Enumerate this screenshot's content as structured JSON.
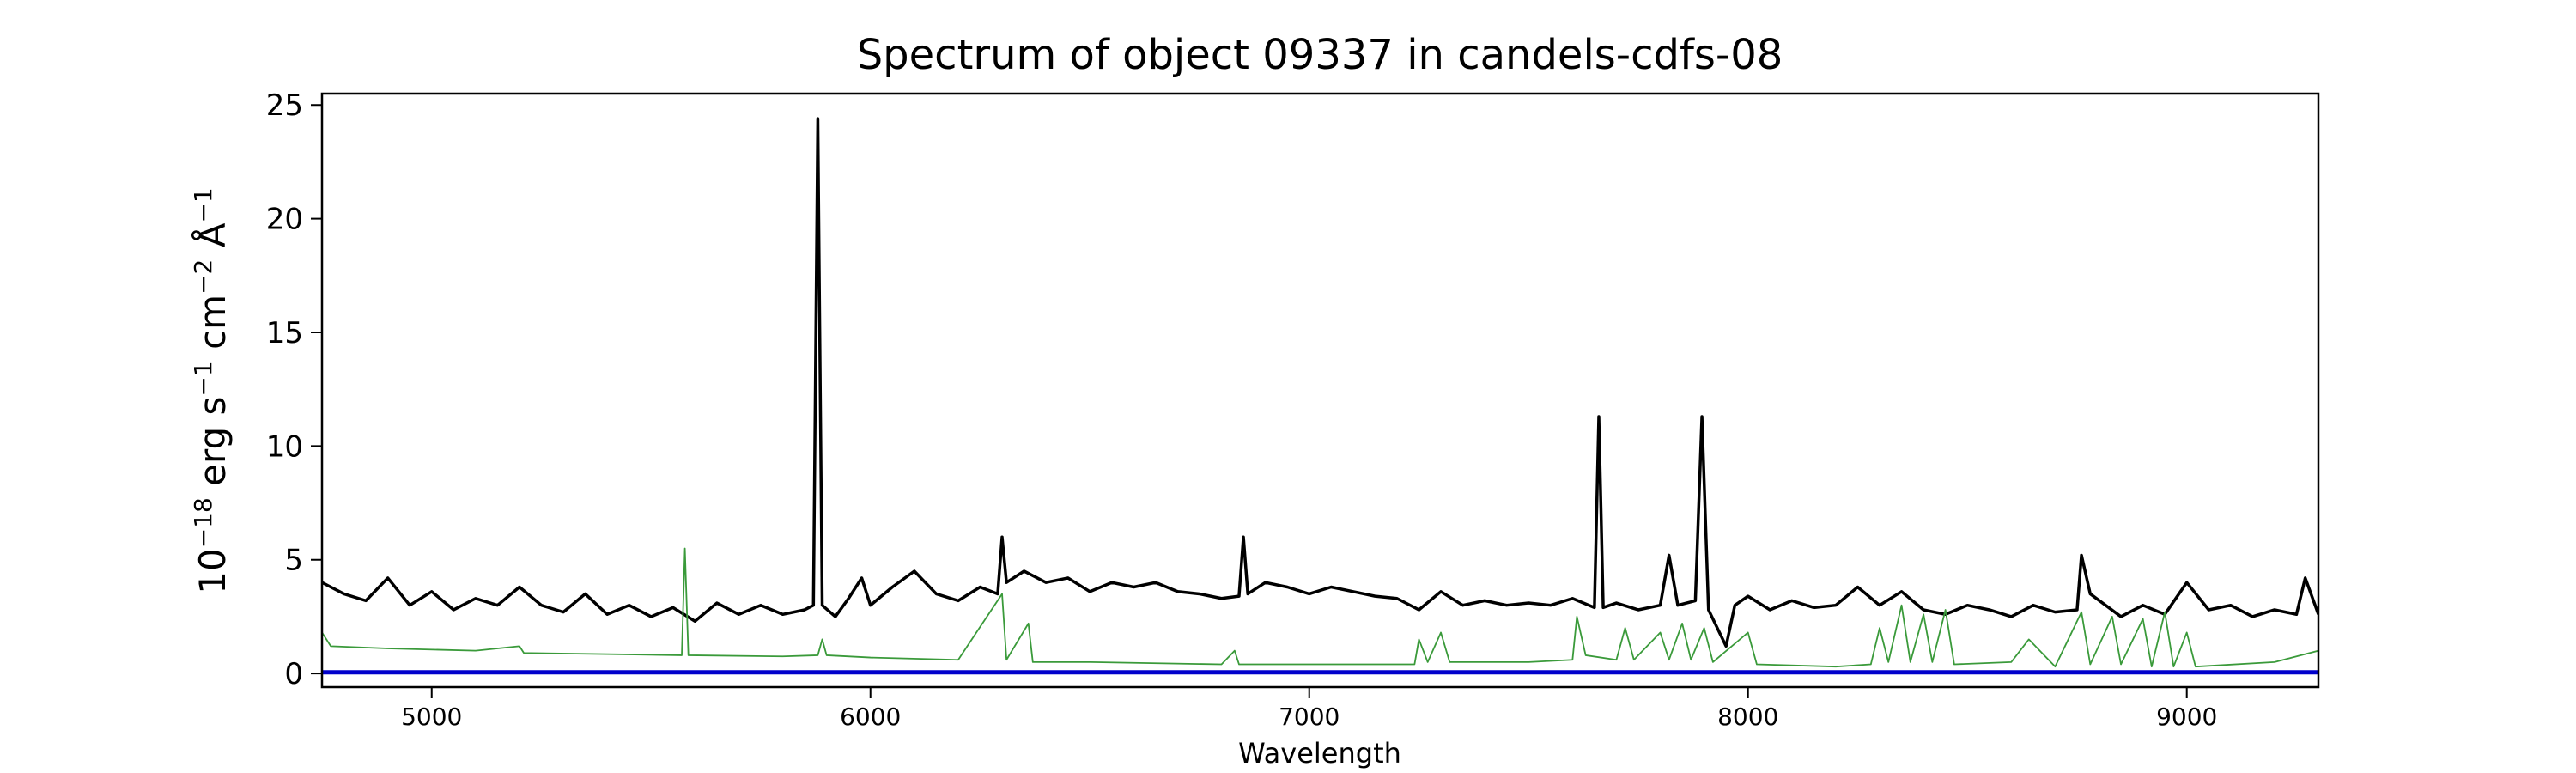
{
  "chart_data": {
    "type": "line",
    "title": "Spectrum of object 09337 in candels-cdfs-08",
    "xlabel": "Wavelength",
    "ylabel_parts": [
      {
        "text": "10",
        "sup": "−18"
      },
      {
        "text": " erg s",
        "sup": "−1"
      },
      {
        "text": " cm",
        "sup": "−2"
      },
      {
        "text": " Å",
        "sup": "−1"
      }
    ],
    "xlim": [
      4750,
      9300
    ],
    "ylim": [
      -0.6,
      25.5
    ],
    "xticks": [
      5000,
      6000,
      7000,
      8000,
      9000
    ],
    "yticks": [
      0,
      5,
      10,
      15,
      20,
      25
    ],
    "series": [
      {
        "color": "#000000",
        "width": 3.5,
        "x": [
          4750,
          4800,
          4850,
          4900,
          4950,
          5000,
          5050,
          5100,
          5150,
          5200,
          5250,
          5300,
          5350,
          5400,
          5450,
          5500,
          5550,
          5600,
          5650,
          5700,
          5750,
          5800,
          5850,
          5870,
          5880,
          5890,
          5920,
          5950,
          5980,
          6000,
          6050,
          6100,
          6150,
          6200,
          6250,
          6290,
          6300,
          6310,
          6350,
          6400,
          6450,
          6500,
          6550,
          6600,
          6650,
          6700,
          6750,
          6800,
          6840,
          6850,
          6860,
          6900,
          6950,
          7000,
          7050,
          7100,
          7150,
          7200,
          7250,
          7300,
          7350,
          7400,
          7450,
          7500,
          7550,
          7600,
          7650,
          7660,
          7670,
          7700,
          7750,
          7800,
          7820,
          7840,
          7880,
          7895,
          7910,
          7950,
          7970,
          8000,
          8050,
          8100,
          8150,
          8200,
          8250,
          8300,
          8350,
          8400,
          8450,
          8500,
          8550,
          8600,
          8650,
          8700,
          8750,
          8760,
          8780,
          8850,
          8900,
          8950,
          9000,
          9050,
          9100,
          9150,
          9200,
          9250,
          9270,
          9300
        ],
        "values": [
          4.0,
          3.5,
          3.2,
          4.2,
          3.0,
          3.6,
          2.8,
          3.3,
          3.0,
          3.8,
          3.0,
          2.7,
          3.5,
          2.6,
          3.0,
          2.5,
          2.9,
          2.3,
          3.1,
          2.6,
          3.0,
          2.6,
          2.8,
          3.0,
          24.4,
          3.0,
          2.5,
          3.3,
          4.2,
          3.0,
          3.8,
          4.5,
          3.5,
          3.2,
          3.8,
          3.5,
          6.0,
          4.0,
          4.5,
          4.0,
          4.2,
          3.6,
          4.0,
          3.8,
          4.0,
          3.6,
          3.5,
          3.3,
          3.4,
          6.0,
          3.5,
          4.0,
          3.8,
          3.5,
          3.8,
          3.6,
          3.4,
          3.3,
          2.8,
          3.6,
          3.0,
          3.2,
          3.0,
          3.1,
          3.0,
          3.3,
          2.9,
          11.3,
          2.9,
          3.1,
          2.8,
          3.0,
          5.2,
          3.0,
          3.2,
          11.3,
          2.8,
          1.2,
          3.0,
          3.4,
          2.8,
          3.2,
          2.9,
          3.0,
          3.8,
          3.0,
          3.6,
          2.8,
          2.6,
          3.0,
          2.8,
          2.5,
          3.0,
          2.7,
          2.8,
          5.2,
          3.5,
          2.5,
          3.0,
          2.6,
          4.0,
          2.8,
          3.0,
          2.5,
          2.8,
          2.6,
          4.2,
          2.6
        ]
      },
      {
        "color": "#3a9a3a",
        "width": 1.8,
        "x": [
          4750,
          4770,
          4900,
          5100,
          5200,
          5210,
          5400,
          5570,
          5577,
          5585,
          5800,
          5880,
          5890,
          5900,
          6000,
          6200,
          6300,
          6310,
          6360,
          6370,
          6500,
          6800,
          6830,
          6840,
          7000,
          7240,
          7250,
          7270,
          7300,
          7320,
          7500,
          7600,
          7610,
          7630,
          7700,
          7720,
          7740,
          7800,
          7820,
          7850,
          7870,
          7900,
          7920,
          8000,
          8020,
          8200,
          8280,
          8300,
          8320,
          8350,
          8370,
          8400,
          8420,
          8450,
          8470,
          8600,
          8640,
          8700,
          8760,
          8780,
          8830,
          8850,
          8900,
          8920,
          8950,
          8970,
          9000,
          9020,
          9200,
          9300
        ],
        "values": [
          1.8,
          1.2,
          1.1,
          1.0,
          1.2,
          0.9,
          0.85,
          0.8,
          5.5,
          0.8,
          0.75,
          0.8,
          1.5,
          0.8,
          0.7,
          0.6,
          3.5,
          0.6,
          2.2,
          0.5,
          0.5,
          0.4,
          1.0,
          0.4,
          0.4,
          0.4,
          1.5,
          0.5,
          1.8,
          0.5,
          0.5,
          0.6,
          2.5,
          0.8,
          0.6,
          2.0,
          0.6,
          1.8,
          0.6,
          2.2,
          0.6,
          2.0,
          0.5,
          1.8,
          0.4,
          0.3,
          0.4,
          2.0,
          0.5,
          3.0,
          0.5,
          2.6,
          0.5,
          2.8,
          0.4,
          0.5,
          1.5,
          0.3,
          2.7,
          0.4,
          2.5,
          0.4,
          2.4,
          0.3,
          2.7,
          0.3,
          1.8,
          0.3,
          0.5,
          1.0
        ]
      },
      {
        "color": "#0000cc",
        "width": 5,
        "x": [
          4750,
          9300
        ],
        "values": [
          0.05,
          0.05
        ]
      }
    ]
  }
}
